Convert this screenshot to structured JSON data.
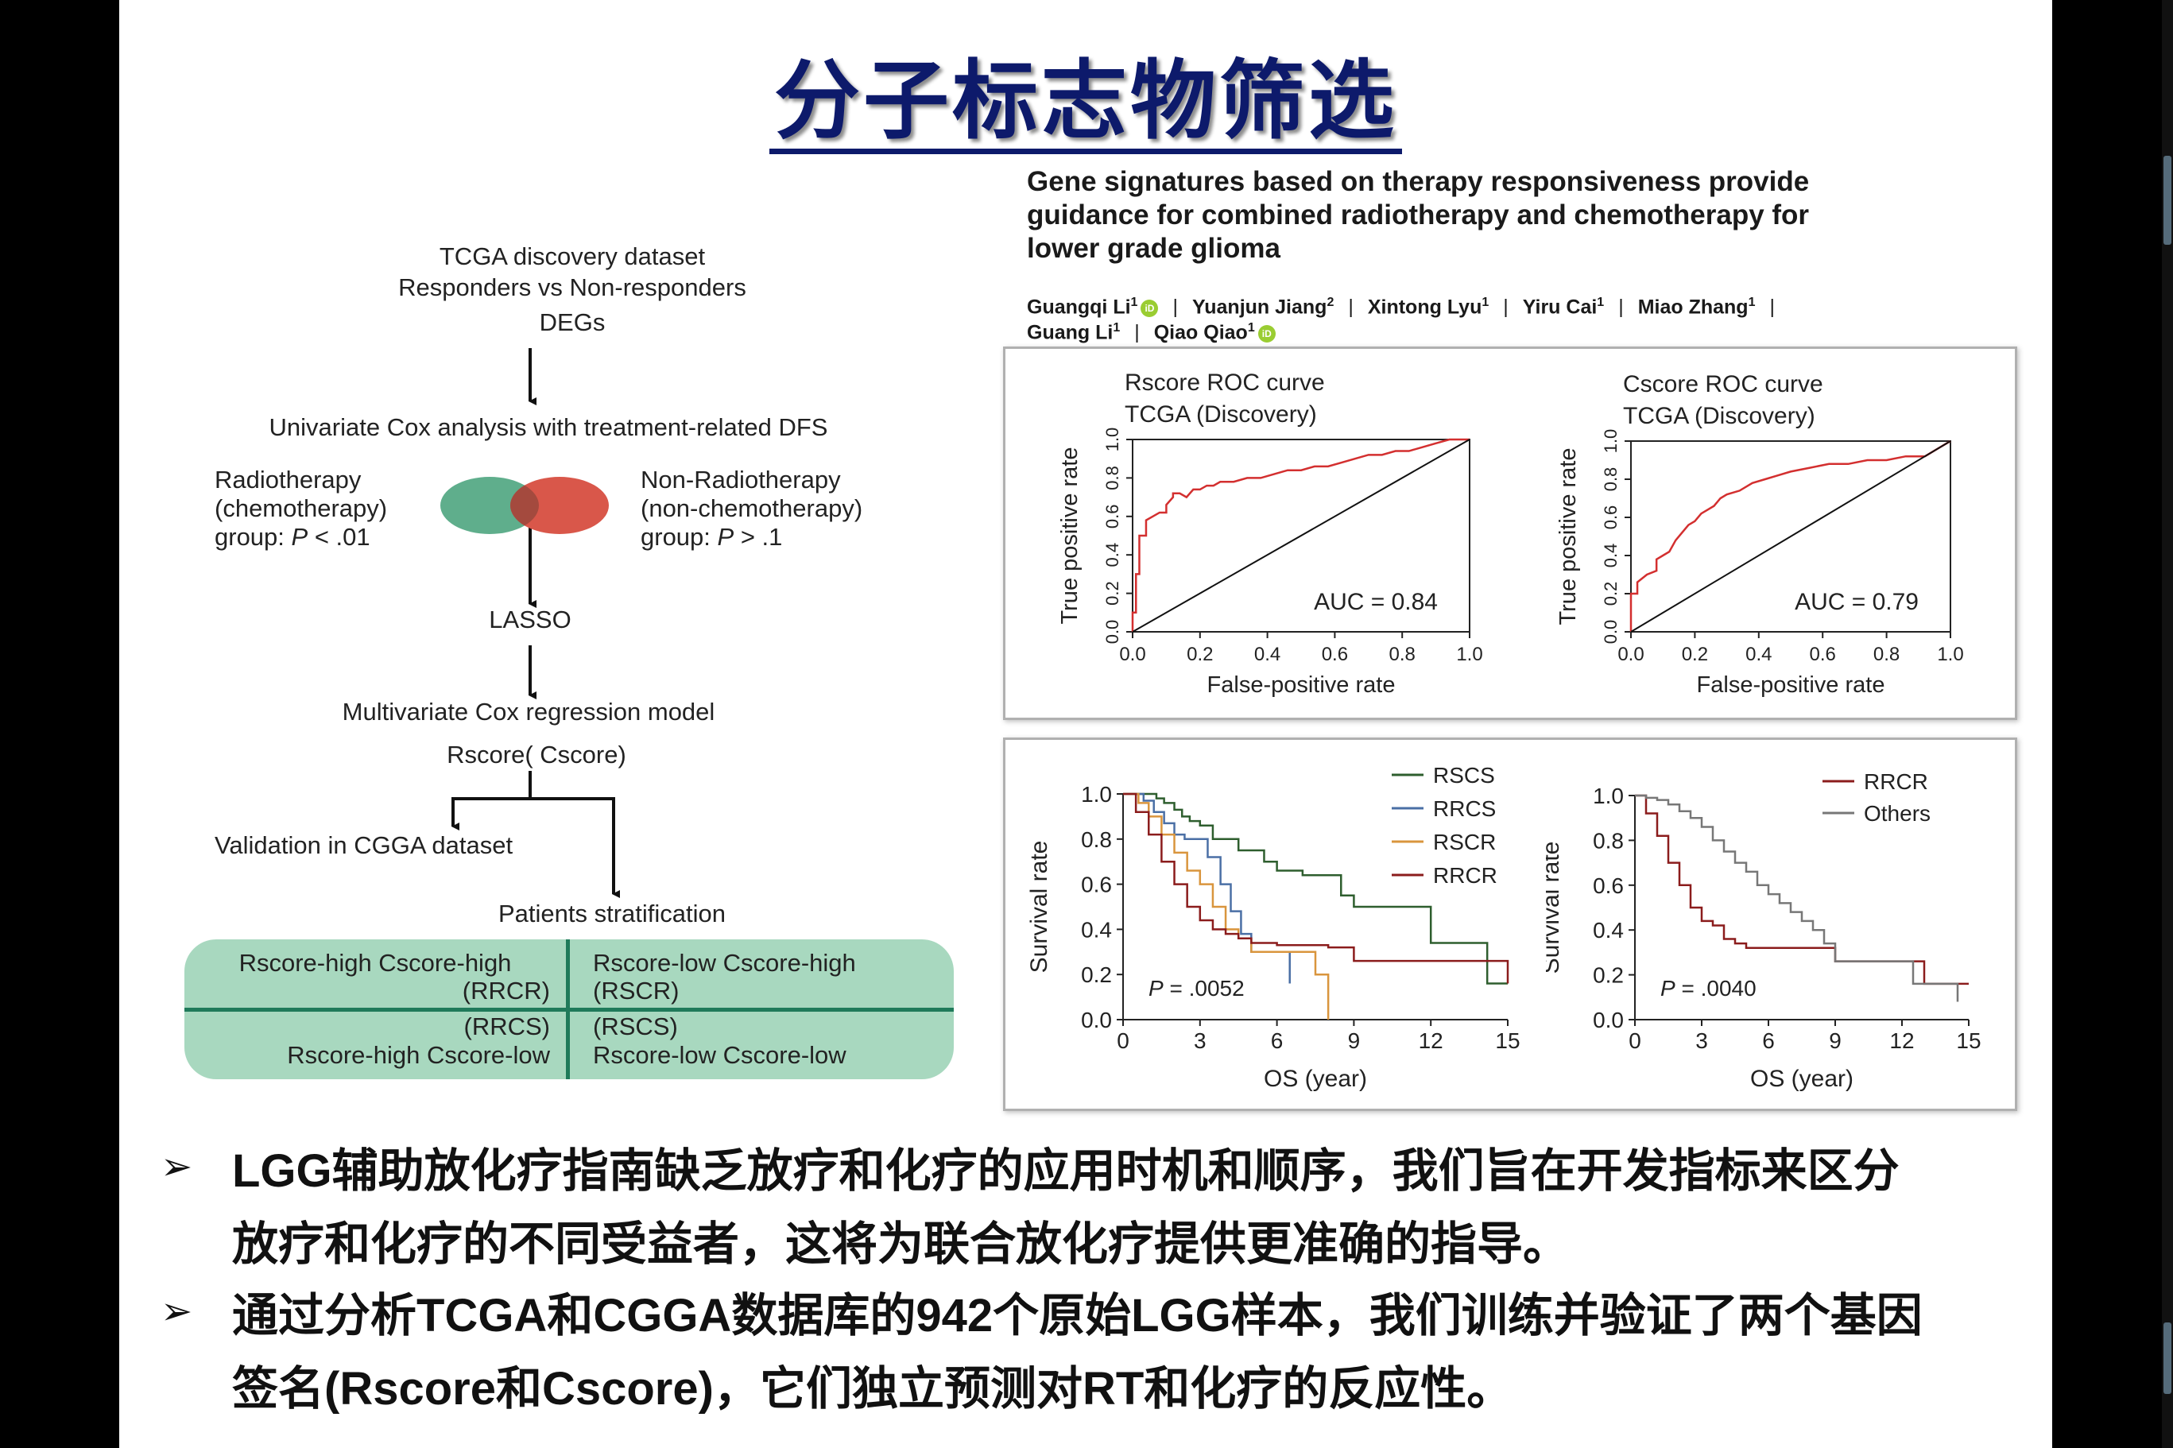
{
  "slide": {
    "title": "分子标志物筛选"
  },
  "flowchart": {
    "box1": [
      "TCGA discovery dataset",
      "Responders vs Non-responders",
      "DEGs"
    ],
    "univariate": "Univariate Cox analysis with treatment-related DFS",
    "left_group": [
      "Radiotherapy",
      "(chemotherapy)",
      "group: ",
      "P",
      " < .01"
    ],
    "right_group": [
      "Non-Radiotherapy",
      "(non-chemotherapy)",
      " group: ",
      "P",
      " > .1"
    ],
    "lasso": "LASSO",
    "multivariate": "Multivariate Cox regression model",
    "score": "Rscore( Cscore)",
    "validation": "Validation in CGGA dataset",
    "stratification": "Patients stratification",
    "venn_colors": {
      "left": "#5fae8c",
      "right": "#d9574a",
      "overlap": "#a44a3e"
    },
    "strat_color": "#a8d8bf",
    "quadrants": {
      "tl": [
        "Rscore-high Cscore-high",
        "(RRCR)"
      ],
      "tr": [
        "Rscore-low Cscore-high",
        "(RSCR)"
      ],
      "bl": [
        "(RRCS)",
        "Rscore-high Cscore-low"
      ],
      "br": [
        "(RSCS)",
        "Rscore-low Cscore-low"
      ]
    }
  },
  "paper": {
    "title_lines": [
      "Gene signatures based on therapy responsiveness provide",
      "guidance for combined radiotherapy and chemotherapy for",
      "lower grade glioma"
    ],
    "authors_line1": [
      {
        "name": "Guangqi Li",
        "sup": "1",
        "orcid": true
      },
      {
        "name": "Yuanjun Jiang",
        "sup": "2",
        "orcid": false
      },
      {
        "name": "Xintong Lyu",
        "sup": "1",
        "orcid": false
      },
      {
        "name": "Yiru Cai",
        "sup": "1",
        "orcid": false
      },
      {
        "name": "Miao Zhang",
        "sup": "1",
        "orcid": false
      }
    ],
    "authors_line2": [
      {
        "name": "Guang Li",
        "sup": "1",
        "orcid": false
      },
      {
        "name": "Qiao Qiao",
        "sup": "1",
        "orcid": true
      }
    ],
    "orcid_label": "iD"
  },
  "chart_data": [
    {
      "type": "line",
      "title": "Rscore ROC curve",
      "subtitle": "TCGA (Discovery)",
      "xlabel": "False-positive rate",
      "ylabel": "True positive rate",
      "xlim": [
        0,
        1
      ],
      "ylim": [
        0,
        1
      ],
      "xticks": [
        "0.0",
        "0.2",
        "0.4",
        "0.6",
        "0.8",
        "1.0"
      ],
      "yticks": [
        "0.0",
        "0.2",
        "0.4",
        "0.6",
        "0.8",
        "1.0"
      ],
      "annotation": "AUC =  0.84",
      "series": [
        {
          "color": "#d32f2f",
          "x": [
            0,
            0,
            0.01,
            0.01,
            0.02,
            0.02,
            0.04,
            0.04,
            0.06,
            0.08,
            0.1,
            0.1,
            0.12,
            0.12,
            0.14,
            0.16,
            0.18,
            0.2,
            0.22,
            0.24,
            0.26,
            0.3,
            0.34,
            0.38,
            0.42,
            0.46,
            0.5,
            0.54,
            0.58,
            0.62,
            0.66,
            0.7,
            0.74,
            0.78,
            0.82,
            0.86,
            0.9,
            0.94,
            1
          ],
          "y": [
            0,
            0.1,
            0.1,
            0.3,
            0.3,
            0.5,
            0.5,
            0.58,
            0.6,
            0.62,
            0.62,
            0.66,
            0.7,
            0.72,
            0.72,
            0.7,
            0.74,
            0.74,
            0.76,
            0.76,
            0.78,
            0.78,
            0.8,
            0.8,
            0.82,
            0.84,
            0.84,
            0.86,
            0.86,
            0.88,
            0.9,
            0.92,
            0.92,
            0.94,
            0.94,
            0.96,
            0.98,
            1,
            1
          ]
        },
        {
          "color": "#111111",
          "x": [
            0,
            1
          ],
          "y": [
            0,
            1
          ]
        }
      ]
    },
    {
      "type": "line",
      "title": "Cscore ROC curve",
      "subtitle": "TCGA (Discovery)",
      "xlabel": "False-positive rate",
      "ylabel": "True positive rate",
      "xlim": [
        0,
        1
      ],
      "ylim": [
        0,
        1
      ],
      "xticks": [
        "0.0",
        "0.2",
        "0.4",
        "0.6",
        "0.8",
        "1.0"
      ],
      "yticks": [
        "0.0",
        "0.2",
        "0.4",
        "0.6",
        "0.8",
        "1.0"
      ],
      "annotation": "AUC =  0.79",
      "series": [
        {
          "color": "#d32f2f",
          "x": [
            0,
            0,
            0.02,
            0.02,
            0.05,
            0.08,
            0.08,
            0.1,
            0.12,
            0.14,
            0.16,
            0.18,
            0.2,
            0.22,
            0.24,
            0.26,
            0.28,
            0.3,
            0.34,
            0.38,
            0.42,
            0.46,
            0.5,
            0.56,
            0.62,
            0.68,
            0.74,
            0.8,
            0.86,
            0.92,
            0.96,
            1
          ],
          "y": [
            0,
            0.2,
            0.2,
            0.26,
            0.3,
            0.32,
            0.38,
            0.4,
            0.42,
            0.48,
            0.52,
            0.56,
            0.58,
            0.62,
            0.64,
            0.66,
            0.7,
            0.72,
            0.74,
            0.78,
            0.8,
            0.82,
            0.84,
            0.86,
            0.88,
            0.88,
            0.9,
            0.9,
            0.92,
            0.92,
            0.96,
            1
          ]
        },
        {
          "color": "#111111",
          "x": [
            0,
            1
          ],
          "y": [
            0,
            1
          ]
        }
      ]
    },
    {
      "type": "line",
      "xlabel": "OS (year)",
      "ylabel": "Survival rate",
      "xlim": [
        0,
        15
      ],
      "ylim": [
        0,
        1
      ],
      "xticks": [
        "0",
        "3",
        "6",
        "9",
        "12",
        "15"
      ],
      "yticks": [
        "0.0",
        "0.2",
        "0.4",
        "0.6",
        "0.8",
        "1.0"
      ],
      "annotation": ".0052",
      "annotation_prefix": "P",
      "series": [
        {
          "name": "RSCS",
          "color": "#2e5e2e",
          "x": [
            0,
            1,
            1.3,
            1.6,
            2,
            2.3,
            2.6,
            3,
            3.5,
            4.5,
            5.5,
            6,
            7,
            8.5,
            9,
            10,
            12,
            13.5,
            14.2,
            15
          ],
          "y": [
            1,
            1,
            0.98,
            0.96,
            0.93,
            0.9,
            0.88,
            0.86,
            0.8,
            0.75,
            0.7,
            0.66,
            0.64,
            0.55,
            0.5,
            0.5,
            0.34,
            0.34,
            0.16,
            0.16
          ]
        },
        {
          "name": "RRCS",
          "color": "#4a6fa5",
          "x": [
            0,
            0.8,
            1.2,
            1.6,
            2,
            2.4,
            3,
            3.3,
            3.8,
            4.2,
            4.6,
            5,
            6,
            6.5
          ],
          "y": [
            1,
            0.97,
            0.92,
            0.87,
            0.82,
            0.8,
            0.8,
            0.72,
            0.6,
            0.48,
            0.38,
            0.3,
            0.3,
            0.16
          ]
        },
        {
          "name": "RSCR",
          "color": "#d9953d",
          "x": [
            0,
            0.6,
            1,
            1.5,
            2,
            2.5,
            3,
            3.5,
            4,
            4.5,
            5,
            6,
            7.5,
            8
          ],
          "y": [
            1,
            0.96,
            0.9,
            0.82,
            0.74,
            0.66,
            0.6,
            0.5,
            0.4,
            0.36,
            0.3,
            0.3,
            0.2,
            0
          ]
        },
        {
          "name": "RRCR",
          "color": "#8b1c1c",
          "x": [
            0,
            0.5,
            1,
            1.5,
            2,
            2.5,
            3,
            3.5,
            4,
            4.5,
            5,
            6,
            7,
            8,
            9,
            10,
            12,
            15
          ],
          "y": [
            1,
            0.92,
            0.82,
            0.7,
            0.6,
            0.5,
            0.44,
            0.4,
            0.38,
            0.36,
            0.34,
            0.33,
            0.33,
            0.32,
            0.26,
            0.26,
            0.26,
            0.16
          ]
        }
      ]
    },
    {
      "type": "line",
      "xlabel": "OS (year)",
      "ylabel": "Survival rate",
      "xlim": [
        0,
        15
      ],
      "ylim": [
        0,
        1
      ],
      "xticks": [
        "0",
        "3",
        "6",
        "9",
        "12",
        "15"
      ],
      "yticks": [
        "0.0",
        "0.2",
        "0.4",
        "0.6",
        "0.8",
        "1.0"
      ],
      "annotation": ".0040",
      "annotation_prefix": "P",
      "series": [
        {
          "name": "RRCR",
          "color": "#8b1c1c",
          "x": [
            0,
            0.5,
            1,
            1.5,
            2,
            2.5,
            3,
            3.5,
            4,
            4.5,
            5,
            6,
            7,
            8,
            9,
            10,
            12,
            13,
            15
          ],
          "y": [
            1,
            0.92,
            0.82,
            0.7,
            0.6,
            0.5,
            0.44,
            0.42,
            0.36,
            0.34,
            0.32,
            0.32,
            0.32,
            0.32,
            0.26,
            0.26,
            0.26,
            0.16,
            0.16
          ]
        },
        {
          "name": "Others",
          "color": "#777777",
          "x": [
            0,
            0.5,
            1,
            1.5,
            2,
            2.5,
            3,
            3.5,
            4,
            4.5,
            5,
            5.5,
            6,
            6.5,
            7,
            7.5,
            8,
            8.5,
            9,
            10,
            11,
            12,
            12.5,
            13,
            14,
            14.5
          ],
          "y": [
            1,
            0.99,
            0.98,
            0.96,
            0.93,
            0.9,
            0.86,
            0.8,
            0.75,
            0.7,
            0.66,
            0.6,
            0.56,
            0.52,
            0.48,
            0.44,
            0.4,
            0.34,
            0.26,
            0.26,
            0.26,
            0.26,
            0.16,
            0.16,
            0.16,
            0.08
          ]
        }
      ]
    }
  ],
  "bullets": {
    "marker": "➢",
    "b1_line1": "LGG辅助放化疗指南缺乏放疗和化疗的应用时机和顺序，我们旨在开发指标来区分",
    "b1_line2": "放疗和化疗的不同受益者，这将为联合放化疗提供更准确的指导。",
    "b2_line1": "通过分析TCGA和CGGA数据库的942个原始LGG样本，我们训练并验证了两个基因",
    "b2_line2": "签名(Rscore和Cscore)，它们独立预测对RT和化疗的反应性。"
  }
}
